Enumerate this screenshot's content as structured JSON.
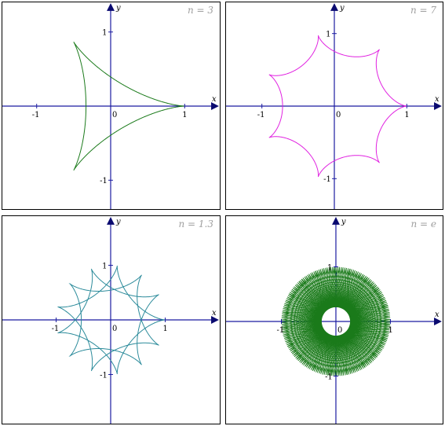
{
  "panels": [
    {
      "n_label": "n = 3",
      "curve_color": "#1a7a1a",
      "axis_x": "x",
      "axis_y": "y",
      "ticks": {
        "neg_x": "-1",
        "pos_x": "1",
        "pos_y": "1",
        "neg_y": "-1",
        "origin": "0"
      },
      "n": 3
    },
    {
      "n_label": "n = 7",
      "curve_color": "#e020e0",
      "axis_x": "x",
      "axis_y": "y",
      "ticks": {
        "neg_x": "-1",
        "pos_x": "1",
        "pos_y": "1",
        "neg_y": "-1",
        "origin": "0"
      },
      "n": 7
    },
    {
      "n_label": "n = 1.3",
      "curve_color": "#2a8a9a",
      "axis_x": "x",
      "axis_y": "y",
      "ticks": {
        "neg_x": "-1",
        "pos_x": "1",
        "pos_y": "1",
        "neg_y": "-1",
        "origin": "0"
      },
      "n": 1.3
    },
    {
      "n_label": "n = e",
      "curve_color": "#1a7a1a",
      "axis_x": "x",
      "axis_y": "y",
      "ticks": {
        "neg_x": "-1",
        "pos_x": "1",
        "pos_y": "1",
        "neg_y": "-1",
        "origin": "0"
      },
      "n": 2.718281828
    }
  ],
  "axis_color": "#1a1aa0"
}
